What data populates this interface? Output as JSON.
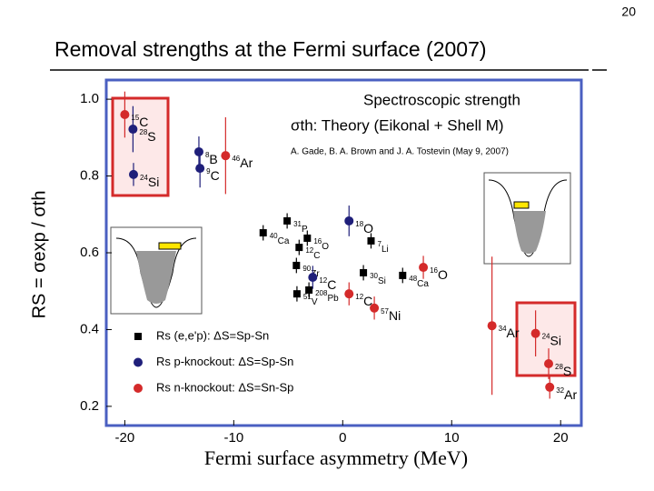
{
  "chart_data": {
    "type": "scatter",
    "page_number": "20",
    "title": "Removal strengths at the Fermi surface (2007)",
    "x_label": "Fermi surface asymmetry (MeV)",
    "y_label": "RS = σexp / σth",
    "annotations": [
      "Spectroscopic strength",
      "σth: Theory (Eikonal + Shell M)",
      "A. Gade, B. A. Brown and J. A. Tostevin (May 9, 2007)"
    ],
    "xlim": [
      -21.7,
      21.9
    ],
    "ylim": [
      0.15,
      1.05
    ],
    "xticks": [
      -20,
      -10,
      0,
      10,
      20
    ],
    "yticks": [
      {
        "value": 1,
        "label": "1.0"
      },
      {
        "value": 0.8,
        "label": "0.8"
      },
      {
        "value": 0.6,
        "label": "0.6"
      },
      {
        "value": 0.4,
        "label": "0.4"
      },
      {
        "value": 0.2,
        "label": "0.2"
      }
    ],
    "legend": "lower left",
    "series": [
      {
        "name": "Rs (e,e'p): ΔS=Sp-Sn",
        "color": "#000000",
        "marker": "square",
        "x": [
          -7.3,
          -5.1,
          -3.25,
          -4.0,
          2.6,
          -4.25,
          1.9,
          5.5,
          -4.2,
          -3.1
        ],
        "y": [
          0.652,
          0.683,
          0.638,
          0.614,
          0.631,
          0.567,
          0.548,
          0.541,
          0.493,
          0.503
        ],
        "errors": [
          0.02,
          0.02,
          0.02,
          0.02,
          0.02,
          0.02,
          0.02,
          0.02,
          0.02,
          0.02
        ],
        "point_labels": [
          "40Ca",
          "31P",
          "16O",
          "12C",
          "7Li",
          "90Zr",
          "30Si",
          "48Ca",
          "51V",
          "208Pb"
        ]
      },
      {
        "name": "Rs p-knockout: ΔS=Sp-Sn",
        "color": "#1f1f7a",
        "marker": "circle",
        "x": [
          -19.25,
          -19.2,
          -13.2,
          -13.1,
          0.58,
          -2.75
        ],
        "y": [
          0.922,
          0.804,
          0.863,
          0.82,
          0.683,
          0.536
        ],
        "errors": [
          0.06,
          0.03,
          0.04,
          0.05,
          0.04,
          0.03
        ],
        "point_labels": [
          "28S",
          "24Si",
          "8B",
          "9C",
          "18O",
          "12C"
        ]
      },
      {
        "name": "Rs n-knockout: ΔS=Sn-Sp",
        "color": "#d42a2a",
        "marker": "circle",
        "x": [
          -20,
          -10.75,
          7.4,
          0.58,
          2.9,
          13.7,
          17.7,
          18.9,
          19.0
        ],
        "y": [
          0.96,
          0.853,
          0.562,
          0.493,
          0.456,
          0.41,
          0.39,
          0.311,
          0.25
        ],
        "errors": [
          0.06,
          0.1,
          0.03,
          0.03,
          0.03,
          0.18,
          0.06,
          0.04,
          0.03
        ],
        "point_labels": [
          "15C",
          "46Ar",
          "16O",
          "12C",
          "57Ni",
          "34Ar",
          "24Si",
          "28S",
          "32Ar"
        ]
      }
    ]
  }
}
